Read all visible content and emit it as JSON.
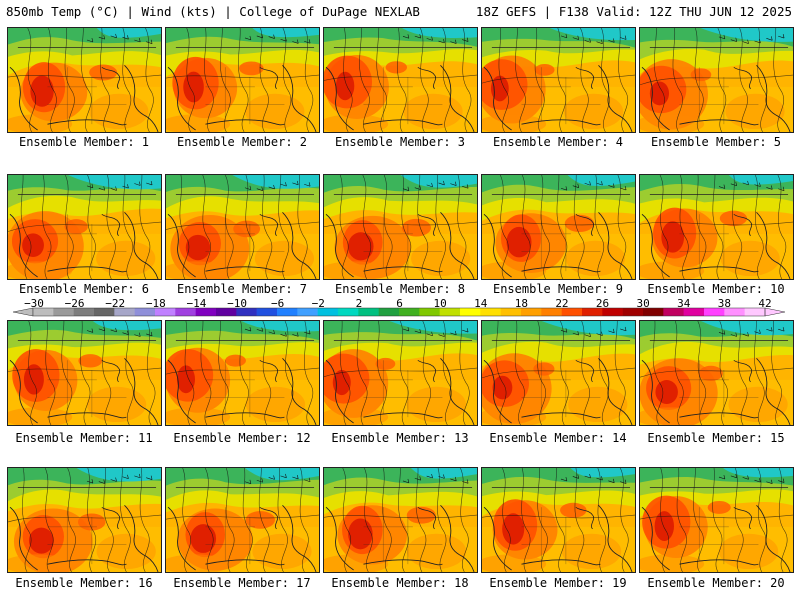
{
  "header": {
    "left": "850mb Temp (°C) | Wind (kts) | College of DuPage NEXLAB",
    "right": "18Z GEFS | F138 Valid: 12Z THU JUN 12 2025"
  },
  "panels": [
    {
      "label": "Ensemble Member: 1"
    },
    {
      "label": "Ensemble Member: 2"
    },
    {
      "label": "Ensemble Member: 3"
    },
    {
      "label": "Ensemble Member: 4"
    },
    {
      "label": "Ensemble Member: 5"
    },
    {
      "label": "Ensemble Member: 6"
    },
    {
      "label": "Ensemble Member: 7"
    },
    {
      "label": "Ensemble Member: 8"
    },
    {
      "label": "Ensemble Member: 9"
    },
    {
      "label": "Ensemble Member: 10"
    },
    {
      "label": "Ensemble Member: 11"
    },
    {
      "label": "Ensemble Member: 12"
    },
    {
      "label": "Ensemble Member: 13"
    },
    {
      "label": "Ensemble Member: 14"
    },
    {
      "label": "Ensemble Member: 15"
    },
    {
      "label": "Ensemble Member: 16"
    },
    {
      "label": "Ensemble Member: 17"
    },
    {
      "label": "Ensemble Member: 18"
    },
    {
      "label": "Ensemble Member: 19"
    },
    {
      "label": "Ensemble Member: 20"
    }
  ],
  "colorbar": {
    "ticks": [
      "−30",
      "−26",
      "−22",
      "−18",
      "−14",
      "−10",
      "−6",
      "−2",
      "2",
      "6",
      "10",
      "14",
      "18",
      "22",
      "26",
      "30",
      "34",
      "38",
      "42"
    ],
    "colors": [
      "#bdbdbd",
      "#9a9a9a",
      "#7d7d7d",
      "#666666",
      "#a6a6c8",
      "#8f8fd9",
      "#c080ff",
      "#a040e0",
      "#8000c0",
      "#6000a0",
      "#3030c0",
      "#2050e0",
      "#2080ff",
      "#40a0ff",
      "#00c0e0",
      "#00d8c0",
      "#00c080",
      "#20a040",
      "#40b020",
      "#80c800",
      "#c0e000",
      "#ffff00",
      "#ffe000",
      "#ffc000",
      "#ffa000",
      "#ff8000",
      "#ff5000",
      "#e02000",
      "#c00000",
      "#a00000",
      "#800000",
      "#c00060",
      "#e000a0",
      "#ff40ff",
      "#ff90ff",
      "#ffc8ff"
    ]
  }
}
